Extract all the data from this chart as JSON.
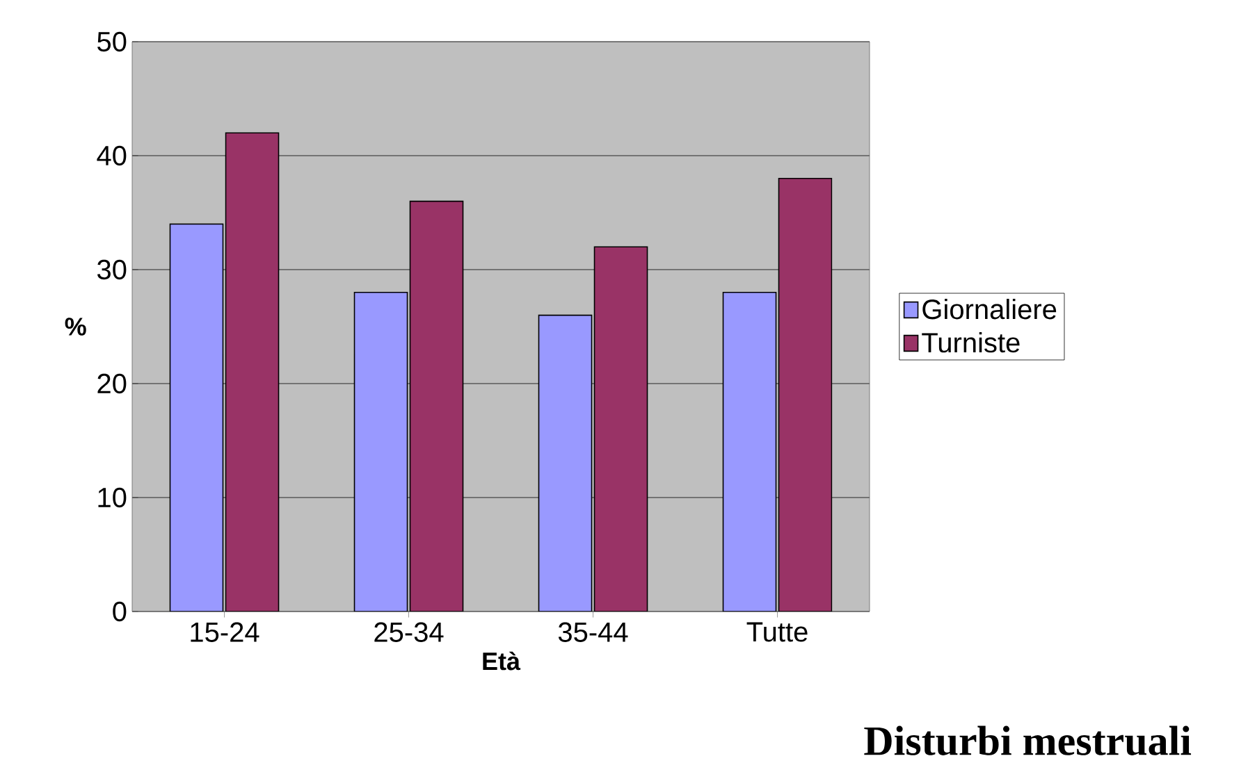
{
  "chart_data": {
    "type": "bar",
    "title": "Disturbi mestruali",
    "xlabel": "Età",
    "ylabel": "%",
    "categories": [
      "15-24",
      "25-34",
      "35-44",
      "Tutte"
    ],
    "series": [
      {
        "name": "Giornaliere",
        "color": "#9999ff",
        "values": [
          34,
          28,
          26,
          28
        ]
      },
      {
        "name": "Turniste",
        "color": "#993366",
        "values": [
          42,
          36,
          32,
          38
        ]
      }
    ],
    "ylim": [
      0,
      50
    ],
    "yticks": [
      0,
      10,
      20,
      30,
      40,
      50
    ],
    "grid": "y",
    "legend": "right"
  }
}
